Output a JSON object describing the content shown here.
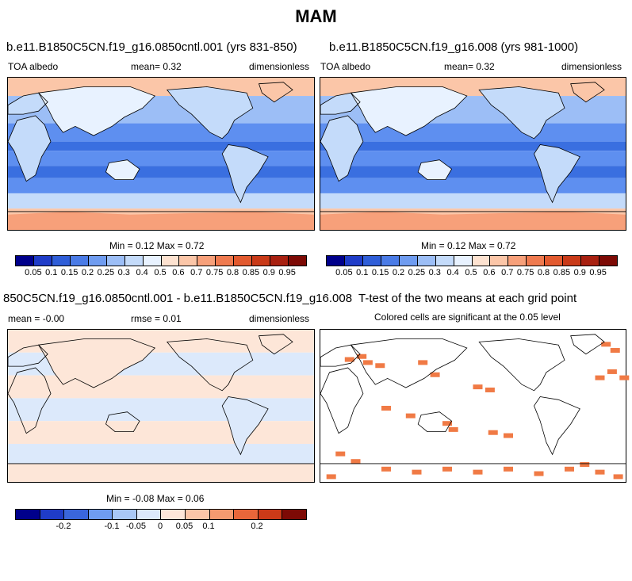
{
  "title": "MAM",
  "panels": [
    {
      "title": "b.e11.B1850C5CN.f19_g16.0850cntl.001 (yrs 831-850)",
      "left": "TOA albedo",
      "center": "mean=  0.32",
      "right": "dimensionless",
      "minmax": "Min =  0.12 Max =  0.72"
    },
    {
      "title": "b.e11.B1850C5CN.f19_g16.008 (yrs 981-1000)",
      "left": "TOA albedo",
      "center": "mean=  0.32",
      "right": "dimensionless",
      "minmax": "Min =  0.12 Max =  0.72"
    },
    {
      "title": "850C5CN.f19_g16.0850cntl.001 - b.e11.B1850C5CN.f19_g16.008",
      "left": "mean = -0.00",
      "center": "rmse =  0.01",
      "right": "dimensionless",
      "minmax": "Min = -0.08 Max =  0.06"
    },
    {
      "title": "T-test of the two means at each grid point",
      "subtitle": "Colored cells are significant at the 0.05 level"
    }
  ],
  "colorbar_main": {
    "colors": [
      "#00008b",
      "#1f3cc8",
      "#2f5ed8",
      "#4a7be6",
      "#6f9cf0",
      "#9cbef6",
      "#c4dbfa",
      "#e8f2ff",
      "#fde2d0",
      "#fbc6a8",
      "#f7a07a",
      "#ef7a4f",
      "#e25a2f",
      "#c93a18",
      "#a82010",
      "#7d0a05"
    ],
    "labels": [
      "0.05",
      "0.1",
      "0.15",
      "0.2",
      "0.25",
      "0.3",
      "0.4",
      "0.5",
      "0.6",
      "0.7",
      "0.75",
      "0.8",
      "0.85",
      "0.9",
      "0.95"
    ]
  },
  "colorbar_diff": {
    "colors": [
      "#00008b",
      "#1f3cc8",
      "#3a66dc",
      "#6f9cf0",
      "#a9c8f6",
      "#dce9fb",
      "#fde6d8",
      "#fbc6a8",
      "#f59a70",
      "#e8663a",
      "#cc3a18",
      "#7d0a05"
    ],
    "labels": [
      "-0.2",
      "-0.1",
      "-0.05",
      "0",
      "0.05",
      "0.1",
      "0.2"
    ]
  },
  "map_colors": {
    "ocean_low": "#3a6fe0",
    "ocean_mid": "#5e8ff0",
    "ocean_light": "#9cbef6",
    "land_light": "#c4dbfa",
    "land_pale": "#e8f2ff",
    "polar": "#fbc6a8",
    "polar_deep": "#f7a07a",
    "diff_pos": "#fde6d8",
    "diff_neg": "#dce9fb",
    "sig": "#f07a45"
  }
}
